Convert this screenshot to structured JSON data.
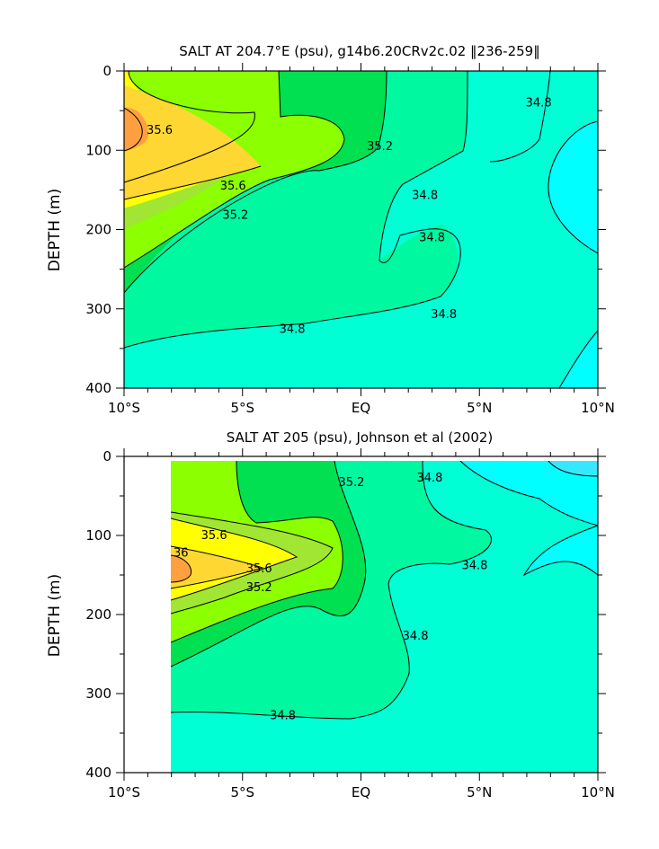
{
  "figure": {
    "background": "#ffffff"
  },
  "chart_data": [
    {
      "type": "heatmap",
      "subtype": "filled-contour",
      "title": "SALT AT 204.7°E (psu), g14b6.20CRv2c.02 ‖236-259‖",
      "xlabel": "",
      "ylabel": "DEPTH (m)",
      "x_ticks": [
        "10°S",
        "5°S",
        "EQ",
        "5°N",
        "10°N"
      ],
      "x_values": [
        -10,
        -5,
        0,
        5,
        10
      ],
      "xlim": [
        -10,
        10
      ],
      "y_ticks": [
        "0",
        "100",
        "200",
        "300",
        "400"
      ],
      "y_values": [
        0,
        100,
        200,
        300,
        400
      ],
      "ylim": [
        400,
        0
      ],
      "contour_labels": [
        {
          "text": "35.6",
          "lat": -8.5,
          "depth": 75
        },
        {
          "text": "35.6",
          "lat": -5.4,
          "depth": 145
        },
        {
          "text": "35.2",
          "lat": -5.3,
          "depth": 182
        },
        {
          "text": "35.2",
          "lat": 0.8,
          "depth": 95
        },
        {
          "text": "34.8",
          "lat": 7.5,
          "depth": 40
        },
        {
          "text": "34.8",
          "lat": 2.7,
          "depth": 157
        },
        {
          "text": "34.8",
          "lat": 3.0,
          "depth": 210
        },
        {
          "text": "34.8",
          "lat": -2.9,
          "depth": 326
        },
        {
          "text": "34.8",
          "lat": 3.5,
          "depth": 307
        }
      ]
    },
    {
      "type": "heatmap",
      "subtype": "filled-contour",
      "title": "SALT AT 205 (psu), Johnson et al (2002)",
      "xlabel": "",
      "ylabel": "DEPTH (m)",
      "x_ticks": [
        "10°S",
        "5°S",
        "EQ",
        "5°N",
        "10°N"
      ],
      "x_values": [
        -10,
        -5,
        0,
        5,
        10
      ],
      "xlim": [
        -10,
        10
      ],
      "y_ticks": [
        "0",
        "100",
        "200",
        "300",
        "400"
      ],
      "y_values": [
        0,
        100,
        200,
        300,
        400
      ],
      "ylim": [
        400,
        0
      ],
      "data_start_lat": -8,
      "contour_labels": [
        {
          "text": "35.6",
          "lat": -6.2,
          "depth": 100
        },
        {
          "text": "36",
          "lat": -7.6,
          "depth": 122
        },
        {
          "text": "35.6",
          "lat": -4.3,
          "depth": 142
        },
        {
          "text": "35.2",
          "lat": -4.3,
          "depth": 166
        },
        {
          "text": "35.2",
          "lat": -0.4,
          "depth": 33
        },
        {
          "text": "34.8",
          "lat": 2.9,
          "depth": 27
        },
        {
          "text": "34.8",
          "lat": 4.8,
          "depth": 138
        },
        {
          "text": "34.8",
          "lat": 2.3,
          "depth": 227
        },
        {
          "text": "34.8",
          "lat": -3.3,
          "depth": 328
        }
      ]
    }
  ],
  "colors": {
    "s36": "#ffa040",
    "s358": "#ffd732",
    "s356": "#ffff00",
    "s354": "#a0e632",
    "s352": "#8cff00",
    "s350": "#00e050",
    "s348": "#00f8a0",
    "s346": "#00ffd5",
    "s344": "#00ffff",
    "s342": "#35e8ff",
    "line": "#000000"
  }
}
